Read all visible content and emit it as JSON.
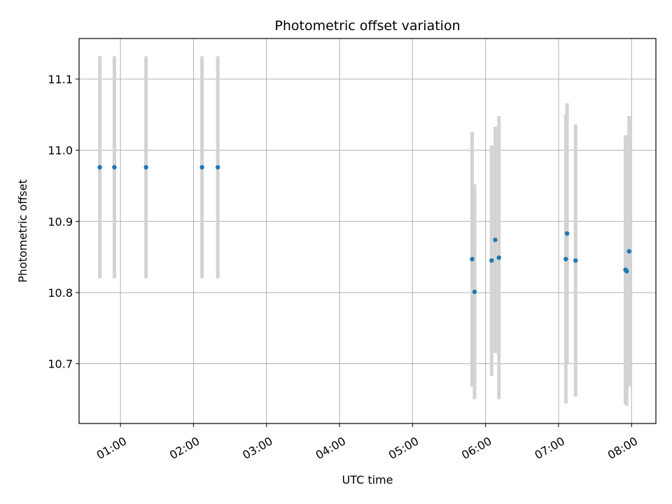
{
  "chart_data": {
    "type": "scatter",
    "title": "Photometric offset variation",
    "xlabel": "UTC time",
    "ylabel": "Photometric offset",
    "xlim": [
      "00:26",
      "08:20"
    ],
    "ylim": [
      10.616,
      11.157
    ],
    "x_ticks": [
      "01:00",
      "02:00",
      "03:00",
      "04:00",
      "05:00",
      "06:00",
      "07:00",
      "08:00"
    ],
    "y_ticks": [
      10.7,
      10.8,
      10.9,
      11.0,
      11.1
    ],
    "y_tick_labels": [
      "10.7",
      "10.8",
      "10.9",
      "11.0",
      "11.1"
    ],
    "grid": true,
    "point_color": "#1f77b4",
    "errorbar_color": "#d3d3d3",
    "series": [
      {
        "points": [
          {
            "time": "00:43",
            "y": 10.976,
            "err": 0.156
          },
          {
            "time": "00:55",
            "y": 10.976,
            "err": 0.156
          },
          {
            "time": "01:21",
            "y": 10.976,
            "err": 0.156
          },
          {
            "time": "02:07",
            "y": 10.976,
            "err": 0.156
          },
          {
            "time": "02:20",
            "y": 10.976,
            "err": 0.156
          },
          {
            "time": "05:49",
            "y": 10.847,
            "err": 0.179
          },
          {
            "time": "05:51",
            "y": 10.801,
            "err": 0.151
          },
          {
            "time": "06:05",
            "y": 10.845,
            "err": 0.162
          },
          {
            "time": "06:08",
            "y": 10.874,
            "err": 0.159
          },
          {
            "time": "06:11",
            "y": 10.849,
            "err": 0.199
          },
          {
            "time": "07:06",
            "y": 10.847,
            "err": 0.203
          },
          {
            "time": "07:07",
            "y": 10.883,
            "err": 0.183
          },
          {
            "time": "07:14",
            "y": 10.845,
            "err": 0.191
          },
          {
            "time": "07:55",
            "y": 10.832,
            "err": 0.189
          },
          {
            "time": "07:56",
            "y": 10.83,
            "err": 0.189
          },
          {
            "time": "07:58",
            "y": 10.858,
            "err": 0.19
          }
        ]
      }
    ]
  }
}
